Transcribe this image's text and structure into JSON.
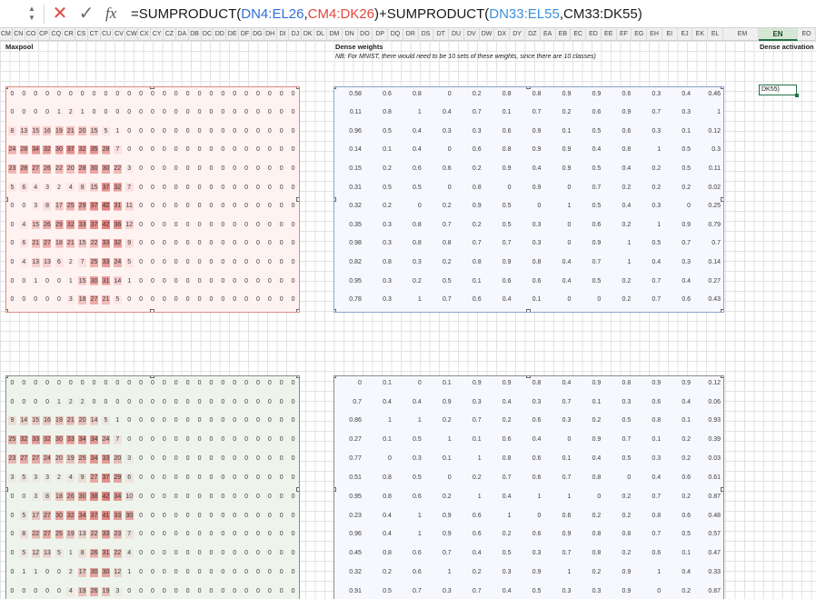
{
  "formula_bar": {
    "spinner_icon": "stepper-icon",
    "cancel_icon": "x-icon",
    "enter_icon": "check-icon",
    "fx_label": "fx",
    "formula_parts": [
      "=SUMPRODUCT(",
      "DN4:EL26",
      ",",
      "CM4:DK26",
      ")+SUMPRODUCT(",
      "DN33:EL55",
      ",CM33:DK55)"
    ]
  },
  "columns": {
    "left": [
      "CM",
      "CN",
      "CO",
      "CP",
      "CQ",
      "CR",
      "CS",
      "CT",
      "CU",
      "CV",
      "CW",
      "CX",
      "CY",
      "CZ",
      "DA",
      "DB",
      "DC",
      "DD",
      "DE",
      "DF",
      "DG",
      "DH",
      "DI",
      "DJ",
      "DK",
      "DL"
    ],
    "right": [
      "DM",
      "DN",
      "DO",
      "DP",
      "DQ",
      "DR",
      "DS",
      "DT",
      "DU",
      "DV",
      "DW",
      "DX",
      "DY",
      "DZ",
      "EA",
      "EB",
      "EC",
      "ED",
      "EE",
      "EF",
      "EG",
      "EH",
      "EI",
      "EJ",
      "EK",
      "EL"
    ],
    "tail": [
      "EM",
      "EN",
      "EO"
    ],
    "selected": "EN"
  },
  "labels": {
    "maxpool": "Maxpool",
    "dense_weights": "Dense weights",
    "note": "NB: For MNIST, there would need to be 10 sets of these weights, since there are 10 classes)",
    "dense_activation": "Dense activation"
  },
  "active_cell_text": "DK55)",
  "maxpool_top": [
    [
      "0",
      "0",
      "0",
      "0",
      "0",
      "0",
      "0",
      "0",
      "0",
      "0",
      "0",
      "0",
      "0",
      "0",
      "0",
      "0",
      "0",
      "0",
      "0",
      "0",
      "0",
      "0",
      "0",
      "0",
      "0"
    ],
    [
      "0",
      "0",
      "0",
      "0",
      "1",
      "2",
      "1",
      "0",
      "0",
      "0",
      "0",
      "0",
      "0",
      "0",
      "0",
      "0",
      "0",
      "0",
      "0",
      "0",
      "0",
      "0",
      "0",
      "0",
      "0"
    ],
    [
      "8",
      "13",
      "15",
      "16",
      "19",
      "21",
      "20",
      "15",
      "5",
      "1",
      "0",
      "0",
      "0",
      "0",
      "0",
      "0",
      "0",
      "0",
      "0",
      "0",
      "0",
      "0",
      "0",
      "0",
      "0"
    ],
    [
      "24",
      "28",
      "34",
      "32",
      "30",
      "37",
      "32",
      "35",
      "28",
      "7",
      "0",
      "0",
      "0",
      "0",
      "0",
      "0",
      "0",
      "0",
      "0",
      "0",
      "0",
      "0",
      "0",
      "0",
      "0"
    ],
    [
      "23",
      "28",
      "27",
      "26",
      "22",
      "20",
      "28",
      "30",
      "30",
      "22",
      "3",
      "0",
      "0",
      "0",
      "0",
      "0",
      "0",
      "0",
      "0",
      "0",
      "0",
      "0",
      "0",
      "0",
      "0"
    ],
    [
      "5",
      "6",
      "4",
      "3",
      "2",
      "4",
      "8",
      "15",
      "37",
      "32",
      "7",
      "0",
      "0",
      "0",
      "0",
      "0",
      "0",
      "0",
      "0",
      "0",
      "0",
      "0",
      "0",
      "0",
      "0"
    ],
    [
      "0",
      "0",
      "3",
      "8",
      "17",
      "25",
      "29",
      "37",
      "42",
      "31",
      "11",
      "0",
      "0",
      "0",
      "0",
      "0",
      "0",
      "0",
      "0",
      "0",
      "0",
      "0",
      "0",
      "0",
      "0"
    ],
    [
      "0",
      "4",
      "15",
      "26",
      "29",
      "32",
      "33",
      "37",
      "42",
      "36",
      "12",
      "0",
      "0",
      "0",
      "0",
      "0",
      "0",
      "0",
      "0",
      "0",
      "0",
      "0",
      "0",
      "0",
      "0"
    ],
    [
      "0",
      "6",
      "21",
      "27",
      "18",
      "21",
      "15",
      "22",
      "33",
      "32",
      "9",
      "0",
      "0",
      "0",
      "0",
      "0",
      "0",
      "0",
      "0",
      "0",
      "0",
      "0",
      "0",
      "0",
      "0"
    ],
    [
      "0",
      "4",
      "13",
      "13",
      "6",
      "2",
      "7",
      "25",
      "33",
      "24",
      "5",
      "0",
      "0",
      "0",
      "0",
      "0",
      "0",
      "0",
      "0",
      "0",
      "0",
      "0",
      "0",
      "0",
      "0"
    ],
    [
      "0",
      "0",
      "1",
      "0",
      "0",
      "1",
      "15",
      "30",
      "31",
      "14",
      "1",
      "0",
      "0",
      "0",
      "0",
      "0",
      "0",
      "0",
      "0",
      "0",
      "0",
      "0",
      "0",
      "0",
      "0"
    ],
    [
      "0",
      "0",
      "0",
      "0",
      "0",
      "3",
      "18",
      "27",
      "21",
      "5",
      "0",
      "0",
      "0",
      "0",
      "0",
      "0",
      "0",
      "0",
      "0",
      "0",
      "0",
      "0",
      "0",
      "0",
      "0"
    ]
  ],
  "maxpool_bottom": [
    [
      "0",
      "0",
      "0",
      "0",
      "0",
      "0",
      "0",
      "0",
      "0",
      "0",
      "0",
      "0",
      "0",
      "0",
      "0",
      "0",
      "0",
      "0",
      "0",
      "0",
      "0",
      "0",
      "0",
      "0",
      "0"
    ],
    [
      "0",
      "0",
      "0",
      "0",
      "1",
      "2",
      "2",
      "0",
      "0",
      "0",
      "0",
      "0",
      "0",
      "0",
      "0",
      "0",
      "0",
      "0",
      "0",
      "0",
      "0",
      "0",
      "0",
      "0",
      "0"
    ],
    [
      "9",
      "14",
      "15",
      "16",
      "19",
      "21",
      "20",
      "14",
      "5",
      "1",
      "0",
      "0",
      "0",
      "0",
      "0",
      "0",
      "0",
      "0",
      "0",
      "0",
      "0",
      "0",
      "0",
      "0",
      "0"
    ],
    [
      "25",
      "32",
      "33",
      "32",
      "30",
      "33",
      "34",
      "34",
      "24",
      "7",
      "0",
      "0",
      "0",
      "0",
      "0",
      "0",
      "0",
      "0",
      "0",
      "0",
      "0",
      "0",
      "0",
      "0",
      "0"
    ],
    [
      "23",
      "27",
      "27",
      "24",
      "20",
      "19",
      "25",
      "34",
      "33",
      "20",
      "3",
      "0",
      "0",
      "0",
      "0",
      "0",
      "0",
      "0",
      "0",
      "0",
      "0",
      "0",
      "0",
      "0",
      "0"
    ],
    [
      "3",
      "5",
      "3",
      "3",
      "2",
      "4",
      "9",
      "27",
      "37",
      "29",
      "6",
      "0",
      "0",
      "0",
      "0",
      "0",
      "0",
      "0",
      "0",
      "0",
      "0",
      "0",
      "0",
      "0",
      "0"
    ],
    [
      "0",
      "0",
      "3",
      "8",
      "18",
      "26",
      "30",
      "38",
      "42",
      "34",
      "10",
      "0",
      "0",
      "0",
      "0",
      "0",
      "0",
      "0",
      "0",
      "0",
      "0",
      "0",
      "0",
      "0",
      "0"
    ],
    [
      "0",
      "5",
      "17",
      "27",
      "30",
      "32",
      "34",
      "37",
      "41",
      "33",
      "30",
      "0",
      "0",
      "0",
      "0",
      "0",
      "0",
      "0",
      "0",
      "0",
      "0",
      "0",
      "0",
      "0",
      "0"
    ],
    [
      "0",
      "8",
      "22",
      "27",
      "25",
      "19",
      "13",
      "22",
      "33",
      "23",
      "7",
      "0",
      "0",
      "0",
      "0",
      "0",
      "0",
      "0",
      "0",
      "0",
      "0",
      "0",
      "0",
      "0",
      "0"
    ],
    [
      "0",
      "5",
      "12",
      "13",
      "5",
      "1",
      "8",
      "26",
      "31",
      "22",
      "4",
      "0",
      "0",
      "0",
      "0",
      "0",
      "0",
      "0",
      "0",
      "0",
      "0",
      "0",
      "0",
      "0",
      "0"
    ],
    [
      "0",
      "1",
      "1",
      "0",
      "0",
      "2",
      "17",
      "30",
      "30",
      "12",
      "1",
      "0",
      "0",
      "0",
      "0",
      "0",
      "0",
      "0",
      "0",
      "0",
      "0",
      "0",
      "0",
      "0",
      "0"
    ],
    [
      "0",
      "0",
      "0",
      "0",
      "0",
      "4",
      "19",
      "26",
      "19",
      "3",
      "0",
      "0",
      "0",
      "0",
      "0",
      "0",
      "0",
      "0",
      "0",
      "0",
      "0",
      "0",
      "0",
      "0",
      "0"
    ]
  ],
  "dense_top": [
    [
      "0.58",
      "0.6",
      "0.8",
      "0",
      "0.2",
      "0.8",
      "0.8",
      "0.9",
      "0.9",
      "0.6",
      "0.3",
      "0.4",
      "0.46"
    ],
    [
      "0.11",
      "0.8",
      "1",
      "0.4",
      "0.7",
      "0.1",
      "0.7",
      "0.2",
      "0.6",
      "0.9",
      "0.7",
      "0.3",
      "1"
    ],
    [
      "0.96",
      "0.5",
      "0.4",
      "0.3",
      "0.3",
      "0.6",
      "0.9",
      "0.1",
      "0.5",
      "0.6",
      "0.3",
      "0.1",
      "0.12"
    ],
    [
      "0.14",
      "0.1",
      "0.4",
      "0",
      "0.6",
      "0.8",
      "0.9",
      "0.9",
      "0.4",
      "0.8",
      "1",
      "0.5",
      "0.3"
    ],
    [
      "0.15",
      "0.2",
      "0.6",
      "0.6",
      "0.2",
      "0.9",
      "0.4",
      "0.9",
      "0.5",
      "0.4",
      "0.2",
      "0.5",
      "0.11"
    ],
    [
      "0.31",
      "0.5",
      "0.5",
      "0",
      "0.8",
      "0",
      "0.9",
      "0",
      "0.7",
      "0.2",
      "0.2",
      "0.2",
      "0.02"
    ],
    [
      "0.32",
      "0.2",
      "0",
      "0.2",
      "0.9",
      "0.5",
      "0",
      "1",
      "0.5",
      "0.4",
      "0.3",
      "0",
      "0.25"
    ],
    [
      "0.35",
      "0.3",
      "0.8",
      "0.7",
      "0.2",
      "0.5",
      "0.3",
      "0",
      "0.6",
      "0.2",
      "1",
      "0.9",
      "0.79"
    ],
    [
      "0.98",
      "0.3",
      "0.8",
      "0.8",
      "0.7",
      "0.7",
      "0.3",
      "0",
      "0.9",
      "1",
      "0.5",
      "0.7",
      "0.7"
    ],
    [
      "0.82",
      "0.8",
      "0.3",
      "0.2",
      "0.8",
      "0.9",
      "0.8",
      "0.4",
      "0.7",
      "1",
      "0.4",
      "0.3",
      "0.14"
    ],
    [
      "0.95",
      "0.3",
      "0.2",
      "0.5",
      "0.1",
      "0.6",
      "0.6",
      "0.4",
      "0.5",
      "0.2",
      "0.7",
      "0.4",
      "0.27"
    ],
    [
      "0.78",
      "0.3",
      "1",
      "0.7",
      "0.6",
      "0.4",
      "0.1",
      "0",
      "0",
      "0.2",
      "0.7",
      "0.6",
      "0.43"
    ]
  ],
  "dense_bottom": [
    [
      "0",
      "0.1",
      "0",
      "0.1",
      "0.9",
      "0.9",
      "0.8",
      "0.4",
      "0.9",
      "0.8",
      "0.9",
      "0.9",
      "0.12"
    ],
    [
      "0.7",
      "0.4",
      "0.4",
      "0.9",
      "0.3",
      "0.4",
      "0.3",
      "0.7",
      "0.1",
      "0.3",
      "0.6",
      "0.4",
      "0.06"
    ],
    [
      "0.86",
      "1",
      "1",
      "0.2",
      "0.7",
      "0.2",
      "0.6",
      "0.3",
      "0.2",
      "0.5",
      "0.8",
      "0.1",
      "0.93"
    ],
    [
      "0.27",
      "0.1",
      "0.5",
      "1",
      "0.1",
      "0.6",
      "0.4",
      "0",
      "0.9",
      "0.7",
      "0.1",
      "0.2",
      "0.39"
    ],
    [
      "0.77",
      "0",
      "0.3",
      "0.1",
      "1",
      "0.8",
      "0.6",
      "0.1",
      "0.4",
      "0.5",
      "0.3",
      "0.2",
      "0.03"
    ],
    [
      "0.51",
      "0.8",
      "0.5",
      "0",
      "0.2",
      "0.7",
      "0.6",
      "0.7",
      "0.8",
      "0",
      "0.4",
      "0.6",
      "0.61"
    ],
    [
      "0.95",
      "0.8",
      "0.6",
      "0.2",
      "1",
      "0.4",
      "1",
      "1",
      "0",
      "0.2",
      "0.7",
      "0.2",
      "0.87"
    ],
    [
      "0.23",
      "0.4",
      "1",
      "0.9",
      "0.6",
      "1",
      "0",
      "0.6",
      "0.2",
      "0.2",
      "0.8",
      "0.6",
      "0.48"
    ],
    [
      "0.96",
      "0.4",
      "1",
      "0.9",
      "0.6",
      "0.2",
      "0.6",
      "0.9",
      "0.8",
      "0.8",
      "0.7",
      "0.5",
      "0.57"
    ],
    [
      "0.45",
      "0.8",
      "0.6",
      "0.7",
      "0.4",
      "0.5",
      "0.3",
      "0.7",
      "0.8",
      "0.2",
      "0.6",
      "0.1",
      "0.47"
    ],
    [
      "0.32",
      "0.2",
      "0.6",
      "1",
      "0.2",
      "0.3",
      "0.9",
      "1",
      "0.2",
      "0.9",
      "1",
      "0.4",
      "0.33"
    ],
    [
      "0.91",
      "0.5",
      "0.7",
      "0.3",
      "0.7",
      "0.4",
      "0.5",
      "0.3",
      "0.3",
      "0.9",
      "0",
      "0.2",
      "0.87"
    ]
  ],
  "colors": {
    "accent_green": "#217346",
    "maxpool_top_border": "#e08a85",
    "dense_top_border": "#8aa4cc",
    "heat_high": "#e6a4a0",
    "formula_ref_red": "#e3473f",
    "formula_ref_blue": "#2f6fd6"
  }
}
